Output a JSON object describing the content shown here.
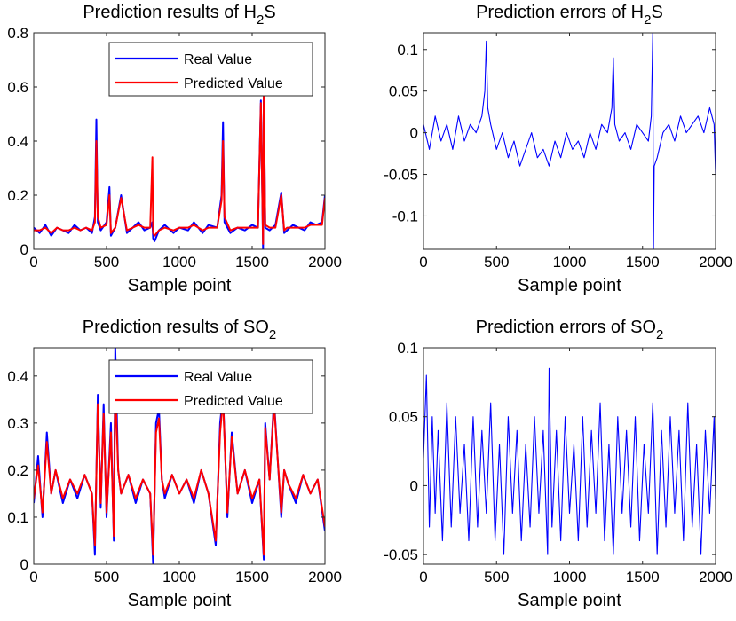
{
  "chart_data": [
    {
      "type": "line",
      "id": "h2s-results",
      "title": "Prediction results of H",
      "title_sub": "2",
      "title_tail": "S",
      "xlabel": "Sample point",
      "ylabel": "",
      "xlim": [
        0,
        2000
      ],
      "ylim": [
        0,
        0.8
      ],
      "xticks": [
        0,
        500,
        1000,
        1500,
        2000
      ],
      "yticks": [
        0,
        0.2,
        0.4,
        0.6,
        0.8
      ],
      "xtick_labels": [
        "0",
        "500",
        "1000",
        "1500",
        "2000"
      ],
      "ytick_labels": [
        "0",
        "0.2",
        "0.4",
        "0.6",
        "0.8"
      ],
      "grid": false,
      "legend_position": "top-right",
      "series": [
        {
          "name": "Real Value",
          "color": "#0000ff",
          "x": [
            0,
            40,
            80,
            120,
            160,
            200,
            240,
            280,
            320,
            360,
            400,
            420,
            430,
            440,
            460,
            500,
            520,
            530,
            560,
            600,
            640,
            680,
            720,
            760,
            800,
            815,
            820,
            830,
            860,
            900,
            960,
            1000,
            1060,
            1100,
            1160,
            1200,
            1260,
            1290,
            1300,
            1310,
            1350,
            1400,
            1450,
            1500,
            1540,
            1560,
            1575,
            1580,
            1590,
            1620,
            1660,
            1700,
            1720,
            1740,
            1780,
            1820,
            1860,
            1900,
            1940,
            1980,
            2000
          ],
          "y": [
            0.08,
            0.06,
            0.09,
            0.05,
            0.08,
            0.07,
            0.06,
            0.09,
            0.07,
            0.08,
            0.06,
            0.12,
            0.48,
            0.1,
            0.07,
            0.1,
            0.23,
            0.05,
            0.08,
            0.2,
            0.06,
            0.08,
            0.1,
            0.07,
            0.08,
            0.1,
            0.04,
            0.03,
            0.07,
            0.09,
            0.06,
            0.08,
            0.07,
            0.1,
            0.06,
            0.09,
            0.08,
            0.2,
            0.47,
            0.1,
            0.06,
            0.08,
            0.07,
            0.09,
            0.08,
            0.55,
            0.0,
            0.6,
            0.08,
            0.07,
            0.09,
            0.21,
            0.06,
            0.07,
            0.09,
            0.08,
            0.07,
            0.1,
            0.09,
            0.1,
            0.2
          ]
        },
        {
          "name": "Predicted Value",
          "color": "#ff0000",
          "x": [
            0,
            40,
            80,
            120,
            160,
            200,
            240,
            280,
            320,
            360,
            400,
            420,
            430,
            440,
            460,
            500,
            520,
            530,
            560,
            600,
            640,
            680,
            720,
            760,
            800,
            815,
            820,
            830,
            860,
            900,
            960,
            1000,
            1060,
            1100,
            1160,
            1200,
            1260,
            1290,
            1300,
            1310,
            1350,
            1400,
            1450,
            1500,
            1540,
            1560,
            1575,
            1580,
            1590,
            1620,
            1660,
            1700,
            1720,
            1740,
            1780,
            1820,
            1860,
            1900,
            1940,
            1980,
            2000
          ],
          "y": [
            0.07,
            0.07,
            0.08,
            0.06,
            0.08,
            0.07,
            0.07,
            0.08,
            0.07,
            0.08,
            0.07,
            0.1,
            0.4,
            0.12,
            0.08,
            0.09,
            0.2,
            0.06,
            0.08,
            0.19,
            0.07,
            0.08,
            0.09,
            0.08,
            0.08,
            0.34,
            0.06,
            0.05,
            0.07,
            0.08,
            0.07,
            0.08,
            0.08,
            0.09,
            0.07,
            0.08,
            0.08,
            0.18,
            0.4,
            0.12,
            0.07,
            0.08,
            0.08,
            0.08,
            0.08,
            0.54,
            0.02,
            0.58,
            0.09,
            0.08,
            0.08,
            0.2,
            0.07,
            0.08,
            0.08,
            0.08,
            0.08,
            0.09,
            0.09,
            0.09,
            0.19
          ]
        }
      ]
    },
    {
      "type": "line",
      "id": "h2s-errors",
      "title": "Prediction errors of H",
      "title_sub": "2",
      "title_tail": "S",
      "xlabel": "Sample point",
      "ylabel": "",
      "xlim": [
        0,
        2000
      ],
      "ylim": [
        -0.14,
        0.12
      ],
      "xticks": [
        0,
        500,
        1000,
        1500,
        2000
      ],
      "yticks": [
        -0.1,
        -0.05,
        0,
        0.05,
        0.1
      ],
      "xtick_labels": [
        "0",
        "500",
        "1000",
        "1500",
        "2000"
      ],
      "ytick_labels": [
        "-0.1",
        "-0.05",
        "0",
        "0.05",
        "0.1"
      ],
      "grid": false,
      "series": [
        {
          "name": "",
          "color": "#0000ff",
          "x": [
            0,
            40,
            80,
            120,
            160,
            200,
            240,
            280,
            320,
            360,
            400,
            420,
            430,
            440,
            460,
            500,
            540,
            580,
            620,
            660,
            700,
            740,
            780,
            820,
            860,
            900,
            940,
            980,
            1020,
            1060,
            1100,
            1140,
            1180,
            1220,
            1260,
            1290,
            1300,
            1310,
            1340,
            1380,
            1420,
            1460,
            1500,
            1540,
            1560,
            1570,
            1575,
            1580,
            1600,
            1640,
            1680,
            1720,
            1760,
            1800,
            1840,
            1880,
            1920,
            1960,
            1990,
            2000
          ],
          "y": [
            0.01,
            -0.02,
            0.02,
            -0.01,
            0.01,
            -0.02,
            0.02,
            -0.01,
            0.01,
            0.0,
            0.02,
            0.05,
            0.11,
            0.03,
            0.01,
            -0.02,
            0.0,
            -0.03,
            -0.01,
            -0.04,
            -0.02,
            0.0,
            -0.03,
            -0.02,
            -0.04,
            -0.01,
            -0.03,
            0.0,
            -0.02,
            -0.01,
            -0.03,
            0.0,
            -0.02,
            0.01,
            0.0,
            0.03,
            0.09,
            0.01,
            -0.01,
            0.0,
            -0.02,
            0.01,
            0.0,
            -0.01,
            0.02,
            0.12,
            -0.14,
            -0.04,
            -0.03,
            0.0,
            0.01,
            -0.01,
            0.02,
            0.0,
            0.01,
            0.02,
            0.0,
            0.03,
            0.01,
            -0.05
          ]
        }
      ]
    },
    {
      "type": "line",
      "id": "so2-results",
      "title": "Prediction results of SO",
      "title_sub": "2",
      "title_tail": "",
      "xlabel": "Sample point",
      "ylabel": "",
      "xlim": [
        0,
        2000
      ],
      "ylim": [
        0,
        0.46
      ],
      "xticks": [
        0,
        500,
        1000,
        1500,
        2000
      ],
      "yticks": [
        0,
        0.1,
        0.2,
        0.3,
        0.4
      ],
      "xtick_labels": [
        "0",
        "500",
        "1000",
        "1500",
        "2000"
      ],
      "ytick_labels": [
        "0",
        "0.1",
        "0.2",
        "0.3",
        "0.4"
      ],
      "grid": false,
      "legend_position": "top-right",
      "series": [
        {
          "name": "Real Value",
          "color": "#0000ff",
          "x": [
            0,
            30,
            60,
            90,
            120,
            150,
            200,
            250,
            300,
            350,
            400,
            420,
            440,
            460,
            480,
            500,
            530,
            550,
            560,
            580,
            600,
            650,
            700,
            750,
            800,
            820,
            840,
            860,
            880,
            900,
            950,
            1000,
            1050,
            1100,
            1150,
            1200,
            1250,
            1280,
            1300,
            1330,
            1360,
            1400,
            1450,
            1500,
            1550,
            1580,
            1590,
            1620,
            1650,
            1700,
            1720,
            1750,
            1800,
            1850,
            1900,
            1950,
            2000
          ],
          "y": [
            0.13,
            0.23,
            0.1,
            0.28,
            0.15,
            0.2,
            0.13,
            0.18,
            0.14,
            0.19,
            0.15,
            0.02,
            0.36,
            0.12,
            0.34,
            0.1,
            0.3,
            0.05,
            0.46,
            0.2,
            0.15,
            0.19,
            0.13,
            0.18,
            0.15,
            0.0,
            0.3,
            0.33,
            0.18,
            0.14,
            0.19,
            0.15,
            0.18,
            0.13,
            0.2,
            0.15,
            0.04,
            0.3,
            0.36,
            0.1,
            0.28,
            0.15,
            0.2,
            0.13,
            0.18,
            0.01,
            0.3,
            0.18,
            0.35,
            0.1,
            0.2,
            0.17,
            0.13,
            0.19,
            0.15,
            0.18,
            0.07
          ]
        },
        {
          "name": "Predicted Value",
          "color": "#ff0000",
          "x": [
            0,
            30,
            60,
            90,
            120,
            150,
            200,
            250,
            300,
            350,
            400,
            420,
            440,
            460,
            480,
            500,
            530,
            550,
            560,
            580,
            600,
            650,
            700,
            750,
            800,
            820,
            840,
            860,
            880,
            900,
            950,
            1000,
            1050,
            1100,
            1150,
            1200,
            1250,
            1280,
            1300,
            1330,
            1360,
            1400,
            1450,
            1500,
            1550,
            1580,
            1590,
            1620,
            1650,
            1700,
            1720,
            1750,
            1800,
            1850,
            1900,
            1950,
            2000
          ],
          "y": [
            0.14,
            0.21,
            0.11,
            0.26,
            0.15,
            0.2,
            0.14,
            0.18,
            0.15,
            0.19,
            0.15,
            0.04,
            0.34,
            0.13,
            0.32,
            0.11,
            0.28,
            0.06,
            0.38,
            0.2,
            0.15,
            0.19,
            0.14,
            0.18,
            0.15,
            0.02,
            0.28,
            0.31,
            0.18,
            0.15,
            0.19,
            0.15,
            0.18,
            0.14,
            0.2,
            0.15,
            0.05,
            0.28,
            0.35,
            0.11,
            0.27,
            0.15,
            0.2,
            0.14,
            0.18,
            0.02,
            0.29,
            0.18,
            0.34,
            0.11,
            0.2,
            0.17,
            0.14,
            0.19,
            0.15,
            0.18,
            0.08
          ]
        }
      ]
    },
    {
      "type": "line",
      "id": "so2-errors",
      "title": "Prediction errors of SO",
      "title_sub": "2",
      "title_tail": "",
      "xlabel": "Sample point",
      "ylabel": "",
      "xlim": [
        0,
        2000
      ],
      "ylim": [
        -0.057,
        0.1
      ],
      "xticks": [
        0,
        500,
        1000,
        1500,
        2000
      ],
      "yticks": [
        -0.05,
        0,
        0.05,
        0.1
      ],
      "xtick_labels": [
        "0",
        "500",
        "1000",
        "1500",
        "2000"
      ],
      "ytick_labels": [
        "-0.05",
        "0",
        "0.05",
        "0.1"
      ],
      "grid": false,
      "series": [
        {
          "name": "",
          "color": "#0000ff",
          "x": [
            0,
            20,
            40,
            60,
            80,
            100,
            130,
            160,
            190,
            220,
            250,
            280,
            310,
            340,
            370,
            400,
            430,
            460,
            490,
            520,
            550,
            580,
            610,
            640,
            670,
            700,
            730,
            760,
            790,
            820,
            850,
            860,
            880,
            910,
            940,
            970,
            1000,
            1030,
            1060,
            1090,
            1120,
            1150,
            1180,
            1210,
            1240,
            1270,
            1300,
            1330,
            1360,
            1390,
            1420,
            1450,
            1480,
            1510,
            1540,
            1570,
            1600,
            1630,
            1660,
            1690,
            1720,
            1750,
            1780,
            1810,
            1840,
            1870,
            1900,
            1930,
            1960,
            1990,
            2000
          ],
          "y": [
            0.02,
            0.08,
            -0.03,
            0.05,
            -0.02,
            0.04,
            -0.04,
            0.06,
            -0.03,
            0.05,
            -0.02,
            0.03,
            -0.04,
            0.05,
            -0.03,
            0.04,
            -0.02,
            0.06,
            -0.04,
            0.03,
            -0.05,
            0.05,
            -0.02,
            0.04,
            -0.04,
            0.03,
            -0.03,
            0.05,
            -0.02,
            0.04,
            -0.05,
            0.085,
            -0.03,
            0.04,
            -0.04,
            0.05,
            -0.02,
            0.03,
            -0.04,
            0.05,
            -0.03,
            0.04,
            -0.02,
            0.06,
            -0.04,
            0.03,
            -0.05,
            0.05,
            -0.02,
            0.04,
            -0.03,
            0.05,
            -0.04,
            0.03,
            -0.02,
            0.06,
            -0.05,
            0.04,
            -0.03,
            0.05,
            -0.02,
            0.04,
            -0.04,
            0.06,
            -0.03,
            0.03,
            -0.05,
            0.04,
            -0.02,
            0.05,
            -0.01
          ]
        }
      ]
    }
  ]
}
